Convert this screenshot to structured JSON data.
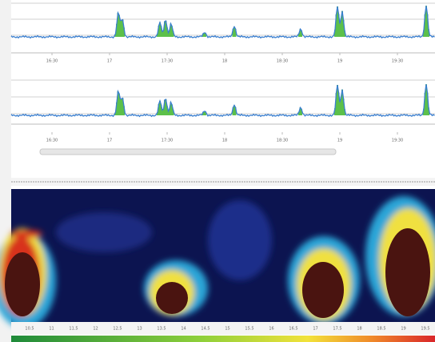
{
  "panels": [
    {
      "x_labels": [
        "16:30",
        "17",
        "17:30",
        "18",
        "18:30",
        "19",
        "19:30"
      ]
    },
    {
      "x_labels": [
        "16:30",
        "17",
        "17:30",
        "18",
        "18:30",
        "19",
        "19:30"
      ]
    }
  ],
  "spectrogram": {
    "x_labels": [
      "10.5",
      "11",
      "11.5",
      "12",
      "12.5",
      "13",
      "13.5",
      "14",
      "14.5",
      "15",
      "15.5",
      "16",
      "16.5",
      "17",
      "17.5",
      "18",
      "18.5",
      "19",
      "19.5"
    ]
  }
}
